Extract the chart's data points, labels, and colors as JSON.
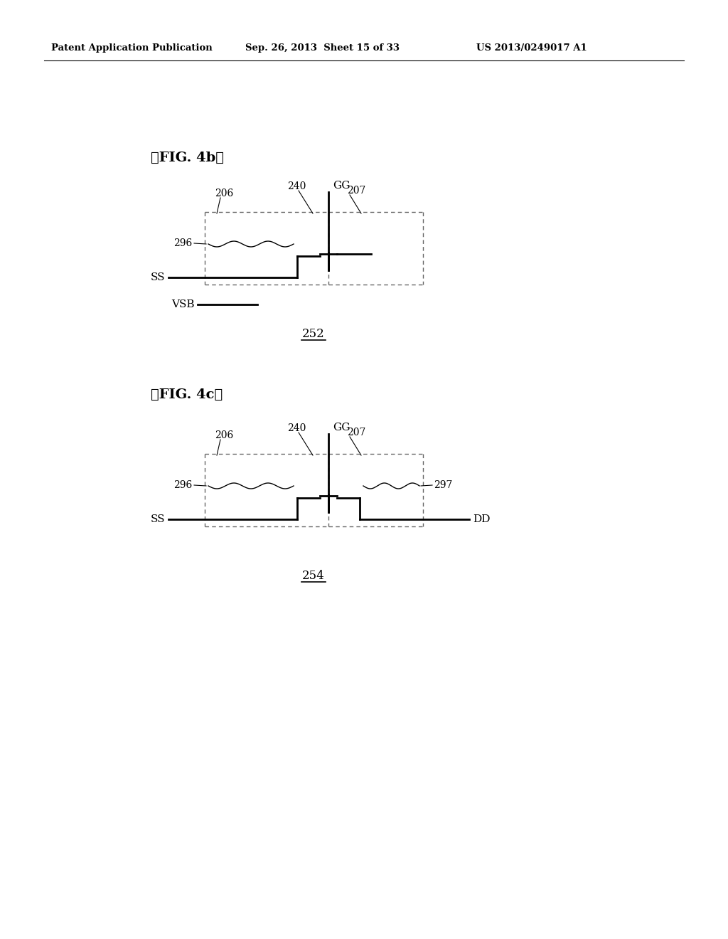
{
  "bg_color": "#ffffff",
  "header_left": "Patent Application Publication",
  "header_mid": "Sep. 26, 2013  Sheet 15 of 33",
  "header_right": "US 2013/0249017 A1",
  "fig4b_label": "』FIG. 4b【",
  "fig4c_label": "』FIG. 4c【",
  "line_color": "#000000",
  "dashed_color": "#666666",
  "lw_thick": 2.0,
  "lw_thin": 1.0
}
